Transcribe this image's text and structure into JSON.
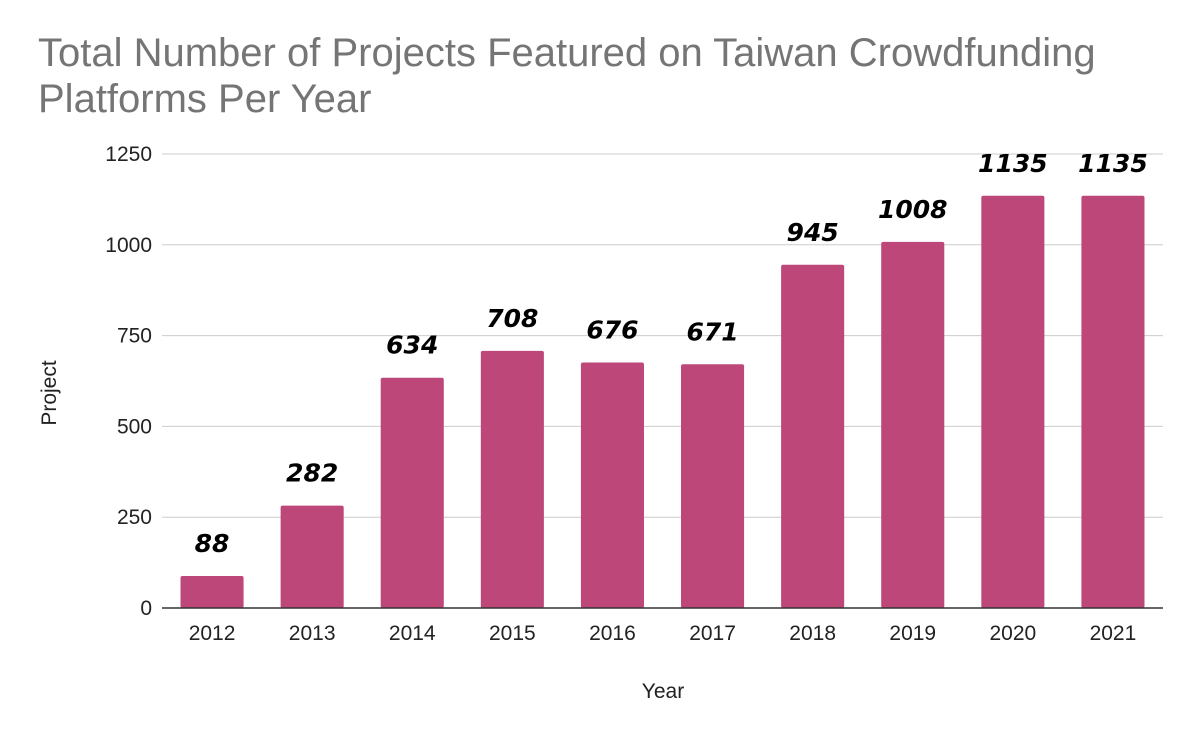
{
  "chart_data": {
    "type": "bar",
    "title": "Total Number of Projects Featured on Taiwan Crowdfunding Platforms Per Year",
    "xlabel": "Year",
    "ylabel": "Project",
    "categories": [
      "2012",
      "2013",
      "2014",
      "2015",
      "2016",
      "2017",
      "2018",
      "2019",
      "2020",
      "2021"
    ],
    "values": [
      88,
      282,
      634,
      708,
      676,
      671,
      945,
      1008,
      1135,
      1135
    ],
    "ylim": [
      0,
      1250
    ],
    "yticks": [
      0,
      250,
      500,
      750,
      1000,
      1250
    ],
    "grid": true,
    "legend": "none",
    "data_labels": true,
    "bar_color": "#bc4778"
  }
}
